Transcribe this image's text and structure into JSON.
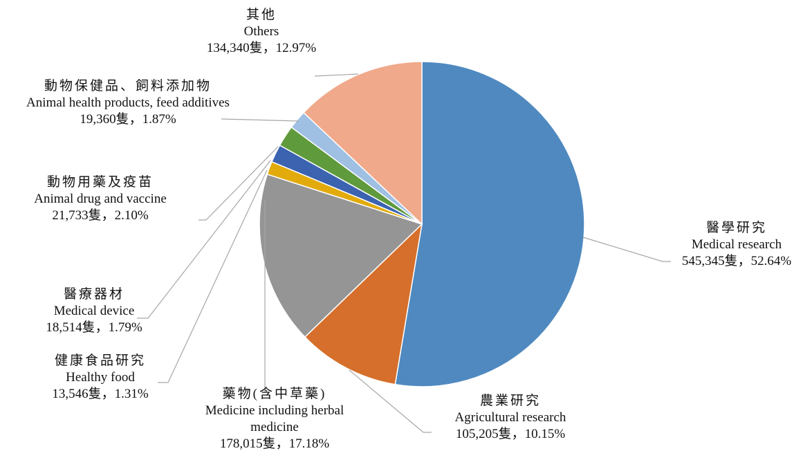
{
  "chart_data": {
    "type": "pie",
    "categories": [
      "醫學研究",
      "農業研究",
      "藥物(含中草藥)",
      "健康食品研究",
      "醫療器材",
      "動物用藥及疫苗",
      "動物保健品、飼料添加物",
      "其他"
    ],
    "categories_en": [
      "Medical research",
      "Agricultural research",
      "Medicine including herbal medicine",
      "Healthy food",
      "Medical device",
      "Animal drug and vaccine",
      "Animal health products, feed additives",
      "Others"
    ],
    "values": [
      52.64,
      10.15,
      17.18,
      1.31,
      1.79,
      2.1,
      1.87,
      12.97
    ],
    "value_labels": [
      "545,345隻，52.64%",
      "105,205隻，10.15%",
      "178,015隻，17.18%",
      "13,546隻，1.31%",
      "18,514隻，1.79%",
      "21,733隻，2.10%",
      "19,360隻，1.87%",
      "134,340隻，12.97%"
    ],
    "colors": [
      "#4f89c0",
      "#d56f2b",
      "#959595",
      "#e2aa0b",
      "#3b63b0",
      "#5f9a3c",
      "#9fbfe3",
      "#f0a98a"
    ]
  }
}
